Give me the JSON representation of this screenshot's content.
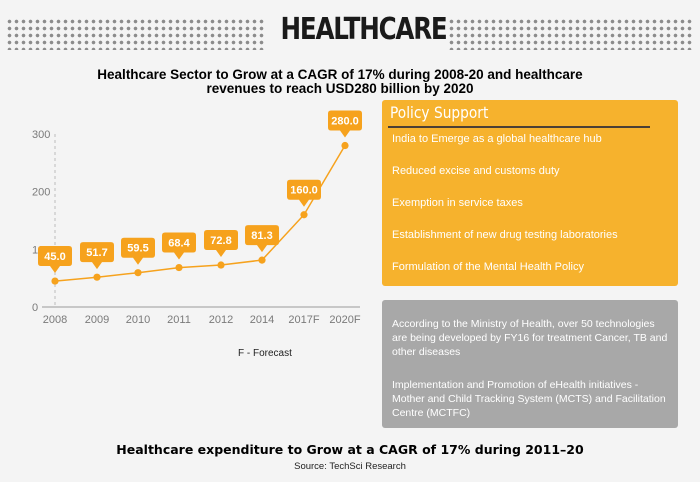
{
  "page_title": "HEALTHCARE",
  "chart_heading_line1": "Healthcare Sector to Grow at a CAGR of 17% during 2008-20 and healthcare",
  "chart_heading_line2": "revenues to reach USD280 billion by 2020",
  "forecast_note": "F - Forecast",
  "colors": {
    "accent": "#f6a21d",
    "policy_panel": "#f6b22d",
    "info_panel": "#a8a8a8",
    "axis_text": "#7a7a7a"
  },
  "chart_data": {
    "type": "line",
    "categories": [
      "2008",
      "2009",
      "2010",
      "2011",
      "2012",
      "2014",
      "2017F",
      "2020F"
    ],
    "values": [
      45.0,
      51.7,
      59.5,
      68.4,
      72.8,
      81.3,
      160.0,
      280.0
    ],
    "data_labels": [
      "45.0",
      "51.7",
      "59.5",
      "68.4",
      "72.8",
      "81.3",
      "160.0",
      "280.0"
    ],
    "yticks": [
      "0",
      "100",
      "200",
      "300"
    ],
    "ylim": [
      0,
      300
    ],
    "grid": false
  },
  "policy": {
    "title": "Policy Support",
    "items": [
      "India to Emerge as a global healthcare hub",
      "Reduced excise and customs duty",
      "Exemption in service taxes",
      "Establishment of new drug testing laboratories",
      "Formulation of the Mental Health Policy"
    ]
  },
  "info": {
    "paragraph1": "According to the Ministry of Health, over 50 technologies are being developed by FY16 for treatment Cancer, TB and other diseases",
    "paragraph2": "Implementation and Promotion of eHealth initiatives - Mother and Child Tracking System (MCTS) and Facilitation Centre (MCTFC)"
  },
  "bottom_heading": "Healthcare expenditure to Grow at a CAGR of 17% during 2011–20",
  "source": "Source: TechSci Research"
}
